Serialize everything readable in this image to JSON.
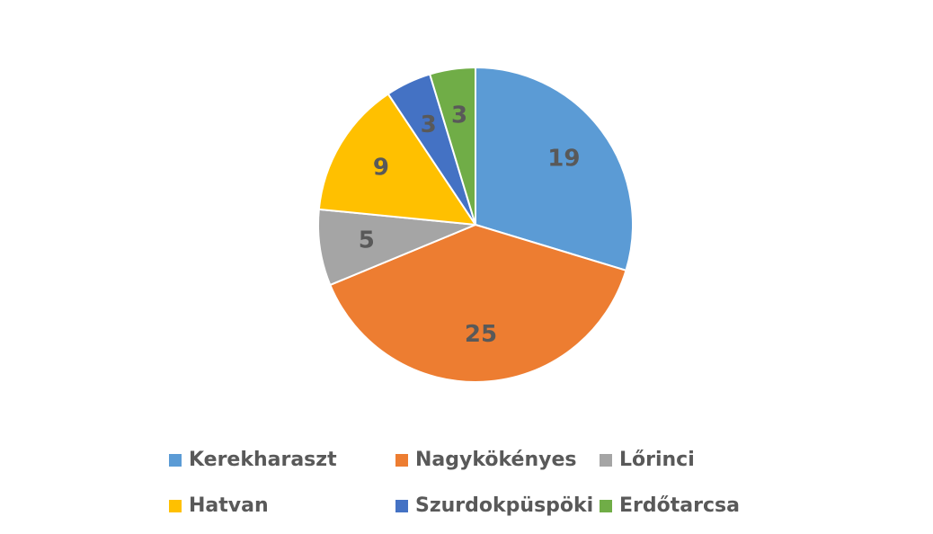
{
  "chart_data": {
    "type": "pie",
    "categories": [
      "Kerekharaszt",
      "Nagykökényes",
      "Lőrinci",
      "Hatvan",
      "Szurdokpüspöki",
      "Erdőtarcsa"
    ],
    "values": [
      19,
      25,
      5,
      9,
      3,
      3
    ],
    "colors": [
      "#5b9bd5",
      "#ed7d31",
      "#a5a5a5",
      "#ffc000",
      "#4472c4",
      "#70ad47"
    ],
    "legend": "bottom"
  }
}
